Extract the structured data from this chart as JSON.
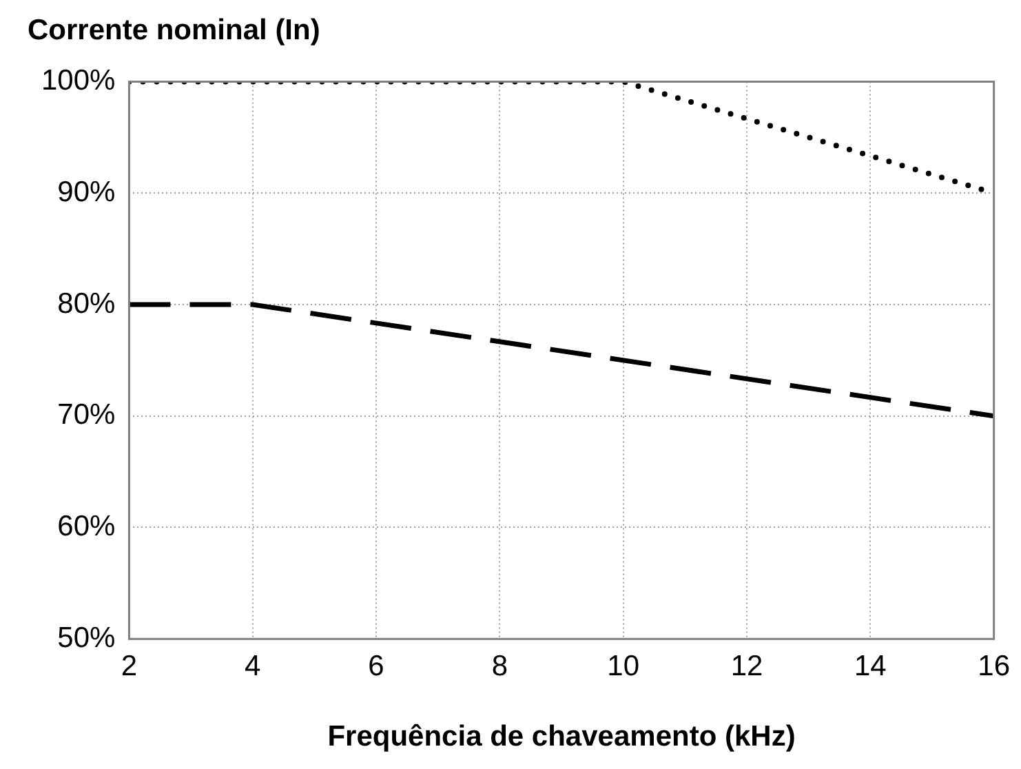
{
  "chart_data": {
    "type": "line",
    "title": "Corrente nominal (In)",
    "xlabel": "Frequência de chaveamento (kHz)",
    "xlim": [
      2,
      16
    ],
    "xticks": [
      2,
      4,
      6,
      8,
      10,
      12,
      14,
      16
    ],
    "ylim": [
      50,
      100
    ],
    "yticks": [
      {
        "value": 50,
        "label": "50%"
      },
      {
        "value": 60,
        "label": "60%"
      },
      {
        "value": 70,
        "label": "70%"
      },
      {
        "value": 80,
        "label": "80%"
      },
      {
        "value": 90,
        "label": "90%"
      },
      {
        "value": 100,
        "label": "100%"
      }
    ],
    "grid": true,
    "legend": false,
    "marker": "none",
    "series": [
      {
        "color": "#000000",
        "line_style": "dotted",
        "x": [
          2,
          10,
          16
        ],
        "values": [
          100,
          100,
          90
        ]
      },
      {
        "color": "#000000",
        "line_style": "dashed",
        "x": [
          2,
          4,
          16
        ],
        "values": [
          80,
          80,
          70
        ]
      }
    ]
  }
}
